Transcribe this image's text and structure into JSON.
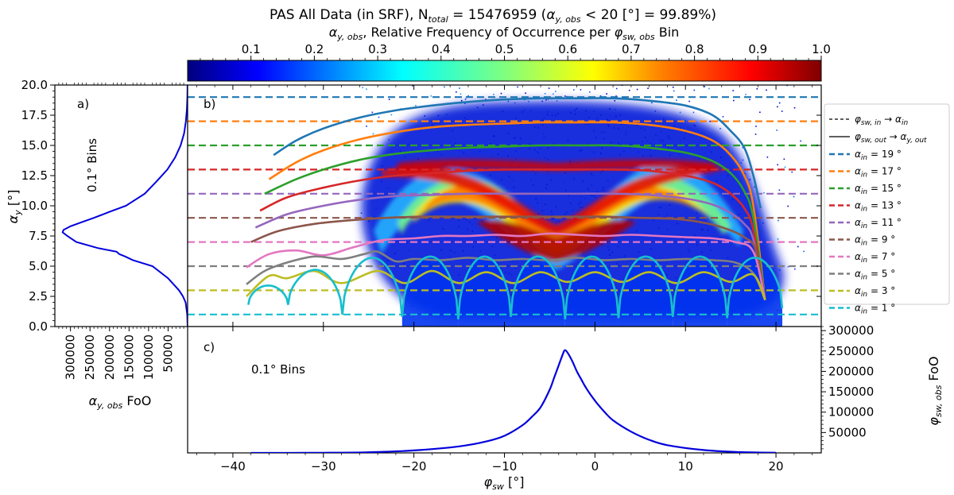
{
  "figure": {
    "title": "PAS All Data (in SRF), N",
    "title_sub": "total",
    "title_rest": " = 15476959  (",
    "title_cond_sym": "α",
    "title_cond_sub": "y, obs",
    "title_cond_rest": " < 20 [°] = 99.89%)"
  },
  "chart_data": [
    {
      "id": "colorbar",
      "type": "heatmap",
      "title_sym": "α",
      "title_sub": "y, obs",
      "title_rest": ", Relative Frequency of Occurrence per ",
      "title_sym2": "φ",
      "title_sub2": "sw, obs",
      "title_end": " Bin",
      "range": [
        0.0,
        1.0
      ],
      "tick_values": [
        0.1,
        0.2,
        0.3,
        0.4,
        0.5,
        0.6,
        0.7,
        0.8,
        0.9,
        1.0
      ],
      "tick_labels": [
        "0.1",
        "0.2",
        "0.3",
        "0.4",
        "0.5",
        "0.6",
        "0.7",
        "0.8",
        "0.9",
        "1.0"
      ],
      "colormap": [
        "#00007f",
        "#0000ff",
        "#007fff",
        "#00ffff",
        "#7fff7f",
        "#ffff00",
        "#ff7f00",
        "#ff0000",
        "#7f0000"
      ]
    },
    {
      "id": "panel_a",
      "type": "line",
      "panel_label": "a)",
      "annotation": "0.1° Bins",
      "ylabel_sym": "α",
      "ylabel_sub": "y",
      "ylabel_rest": " [°]",
      "xlabel_sym": "α",
      "xlabel_sub": "y, obs",
      "xlabel_rest": " FoO",
      "ylim": [
        0,
        20
      ],
      "xlim_reversed": [
        340000,
        0
      ],
      "y_ticks": [
        0.0,
        2.5,
        5.0,
        7.5,
        10.0,
        12.5,
        15.0,
        17.5,
        20.0
      ],
      "y_tick_labels": [
        "0.0",
        "2.5",
        "5.0",
        "7.5",
        "10.0",
        "12.5",
        "15.0",
        "17.5",
        "20.0"
      ],
      "x_ticks": [
        300000,
        250000,
        200000,
        150000,
        100000,
        50000
      ],
      "x_tick_labels": [
        "300000",
        "250000",
        "200000",
        "150000",
        "100000",
        "50000"
      ],
      "series": [
        {
          "name": "FoO",
          "color": "#0000dd",
          "y": [
            0,
            1,
            2,
            2.5,
            3,
            4,
            5,
            5.5,
            5.8,
            6.0,
            6.2,
            6.5,
            7.0,
            7.5,
            7.8,
            8.0,
            8.3,
            8.6,
            9.0,
            9.5,
            10,
            11,
            12,
            13,
            14,
            15,
            16,
            17,
            18,
            19,
            20
          ],
          "x": [
            0,
            1000,
            5000,
            12000,
            22000,
            50000,
            90000,
            140000,
            160000,
            175000,
            182000,
            230000,
            285000,
            308000,
            320000,
            318000,
            300000,
            275000,
            240000,
            200000,
            158000,
            110000,
            80000,
            52000,
            32000,
            18000,
            9000,
            4500,
            1800,
            700,
            200
          ]
        }
      ]
    },
    {
      "id": "panel_b",
      "type": "line",
      "panel_label": "b)",
      "xlim": [
        -45,
        25
      ],
      "ylim": [
        0,
        20
      ],
      "heatmap": "2D histogram of alpha_y,obs vs phi_sw,obs (relative frequency per phi bin)",
      "legend_placement": "outside-right",
      "legend_dashed_label_sym": "φ",
      "legend_dashed_label_sub": "sw, in",
      "legend_dashed_label_arrow": " → ",
      "legend_dashed_label_sym2": "α",
      "legend_dashed_label_sub2": "in",
      "legend_solid_label_sym": "φ",
      "legend_solid_label_sub": "sw, out",
      "legend_solid_label_arrow": " → ",
      "legend_solid_label_sym2": "α",
      "legend_solid_label_sub2": "y, out",
      "series": [
        {
          "name": "αin = 19 °",
          "label_sym": "α",
          "label_sub": "in",
          "label_rest": " = 19 °",
          "alpha_in": 19,
          "color": "#1f77b4",
          "x": [
            -35.5,
            -33,
            -30,
            -26,
            -22,
            -18,
            -14,
            -10,
            -6,
            -2,
            2,
            6,
            10,
            13,
            15,
            16.5,
            17.5,
            18.3
          ],
          "y": [
            14.2,
            15.4,
            16.4,
            17.3,
            17.9,
            18.3,
            18.6,
            18.8,
            18.9,
            18.9,
            18.9,
            18.7,
            18.3,
            17.5,
            16.2,
            14.8,
            12.5,
            9.8
          ]
        },
        {
          "name": "αin = 17 °",
          "label_sym": "α",
          "label_sub": "in",
          "label_rest": " = 17 °",
          "alpha_in": 17,
          "color": "#ff7f0e",
          "x": [
            -36,
            -33,
            -30,
            -26,
            -22,
            -18,
            -14,
            -10,
            -6,
            -2,
            2,
            6,
            10,
            13,
            15,
            16.5,
            17.5,
            18.8
          ],
          "y": [
            12.2,
            13.6,
            14.6,
            15.5,
            16.1,
            16.5,
            16.7,
            16.8,
            16.9,
            16.9,
            16.9,
            16.7,
            16.2,
            15.4,
            14.2,
            12.5,
            10.0,
            2.2
          ]
        },
        {
          "name": "αin = 15 °",
          "label_sym": "α",
          "label_sub": "in",
          "label_rest": " = 15 °",
          "alpha_in": 15,
          "color": "#2ca02c",
          "x": [
            -36.5,
            -33,
            -30,
            -26,
            -22,
            -18,
            -14,
            -10,
            -6,
            -2,
            2,
            6,
            10,
            13,
            15,
            16.5,
            17.5,
            18.8
          ],
          "y": [
            11.0,
            12.2,
            13.0,
            13.8,
            14.3,
            14.6,
            14.8,
            14.9,
            15.0,
            15.0,
            15.0,
            14.8,
            14.4,
            13.7,
            12.7,
            11.2,
            9.0,
            2.2
          ]
        },
        {
          "name": "αin = 13 °",
          "label_sym": "α",
          "label_sub": "in",
          "label_rest": " = 13 °",
          "alpha_in": 13,
          "color": "#d62728",
          "x": [
            -37,
            -34,
            -30,
            -26,
            -22,
            -18,
            -14,
            -10,
            -6,
            -2,
            2,
            6,
            10,
            13,
            15,
            16.5,
            17.5,
            18.8
          ],
          "y": [
            9.6,
            10.7,
            11.5,
            12.1,
            12.5,
            12.7,
            12.9,
            13.0,
            13.0,
            13.0,
            13.0,
            12.9,
            12.5,
            11.9,
            11.0,
            9.8,
            8.0,
            2.2
          ]
        },
        {
          "name": "αin = 11 °",
          "label_sym": "α",
          "label_sub": "in",
          "label_rest": " = 11 °",
          "alpha_in": 11,
          "color": "#9467bd",
          "x": [
            -37.5,
            -34,
            -30,
            -26,
            -22,
            -18,
            -14,
            -10,
            -6,
            -2,
            2,
            6,
            10,
            13,
            15,
            16.5,
            17.5,
            18.8
          ],
          "y": [
            8.2,
            9.3,
            10.0,
            10.5,
            10.8,
            10.9,
            11.0,
            11.0,
            11.0,
            11.0,
            11.0,
            10.9,
            10.6,
            10.1,
            9.4,
            8.5,
            7.2,
            2.2
          ]
        },
        {
          "name": "αin = 9 °",
          "label_sym": "α",
          "label_sub": "in",
          "label_rest": " = 9 °",
          "alpha_in": 9,
          "color": "#8c564b",
          "x": [
            -38,
            -35,
            -31,
            -27,
            -23,
            -19,
            -15,
            -11,
            -7,
            -3,
            1,
            5,
            9,
            12,
            14.5,
            16.5,
            17.8,
            18.8
          ],
          "y": [
            7.0,
            7.9,
            8.5,
            8.8,
            9.0,
            9.1,
            9.1,
            9.1,
            9.1,
            9.1,
            9.1,
            9.0,
            8.9,
            8.6,
            8.1,
            7.4,
            6.3,
            2.2
          ]
        },
        {
          "name": "αin = 7 °",
          "label_sym": "α",
          "label_sub": "in",
          "label_rest": " = 7 °",
          "alpha_in": 7,
          "color": "#e377c2",
          "x": [
            -38.5,
            -36,
            -33,
            -30,
            -27,
            -25,
            -23,
            -20,
            -17,
            -14,
            -11,
            -8,
            -5,
            -2,
            1,
            4,
            7,
            10,
            13,
            15.5,
            17.5,
            18.8
          ],
          "y": [
            4.9,
            6.0,
            6.3,
            5.9,
            6.5,
            6.9,
            7.2,
            7.3,
            7.5,
            7.5,
            7.6,
            7.5,
            7.7,
            7.6,
            7.5,
            7.6,
            7.5,
            7.4,
            7.3,
            7.0,
            6.2,
            2.2
          ]
        },
        {
          "name": "αin = 5 °",
          "label_sym": "α",
          "label_sub": "in",
          "label_rest": " = 5 °",
          "alpha_in": 5,
          "color": "#7f7f7f",
          "x": [
            -38.5,
            -36.5,
            -34,
            -31,
            -28,
            -25.5,
            -24,
            -22,
            -20,
            -17,
            -14,
            -11,
            -8,
            -5,
            -2,
            1,
            4,
            7,
            10,
            13,
            15.5,
            17.5,
            18.8
          ],
          "y": [
            3.5,
            4.6,
            5.3,
            5.8,
            5.6,
            6.0,
            6.2,
            5.4,
            5.6,
            5.5,
            5.7,
            5.5,
            5.6,
            5.5,
            5.7,
            5.5,
            5.6,
            5.5,
            5.6,
            5.5,
            5.3,
            4.4,
            2.2
          ]
        },
        {
          "name": "αin = 3 °",
          "label_sym": "α",
          "label_sub": "in",
          "label_rest": " = 3 °",
          "alpha_in": 3,
          "color": "#bcbd22",
          "x": [
            -38.5,
            -36,
            -34,
            -31,
            -28,
            -24,
            -21,
            -18,
            -15,
            -12,
            -9,
            -6,
            -3,
            0,
            3,
            6,
            9,
            12,
            15,
            17.5,
            18.8
          ],
          "y": [
            2.5,
            4.2,
            4.0,
            4.6,
            3.6,
            4.6,
            3.6,
            4.6,
            3.6,
            4.5,
            3.6,
            4.5,
            3.7,
            4.5,
            3.7,
            4.5,
            3.6,
            4.5,
            3.7,
            4.3,
            2.2
          ]
        }
      ],
      "arches_alpha_1": {
        "name": "αin = 1 °",
        "label_sym": "α",
        "label_sub": "in",
        "label_rest": " = 1 °",
        "alpha_in": 1,
        "color": "#17becf",
        "x_minima": [
          -38.3,
          -33.9,
          -27.9,
          -21.3,
          -15.1,
          -9.3,
          -3.3,
          2.6,
          8.6,
          14.6,
          20.7
        ],
        "minima_y": [
          1.8,
          1.8,
          1.0,
          0.8,
          0.6,
          0.8,
          0.6,
          0.7,
          0.8,
          0.7,
          1.5
        ],
        "peak_y": [
          3.4,
          4.7,
          5.7,
          5.8,
          5.8,
          5.8,
          5.8,
          5.8,
          5.8,
          5.7
        ]
      },
      "x_ticks": [
        -40,
        -30,
        -20,
        -10,
        0,
        10,
        20
      ],
      "x_tick_labels": [
        "−40",
        "−30",
        "−20",
        "−10",
        "0",
        "10",
        "20"
      ]
    },
    {
      "id": "panel_c",
      "type": "line",
      "panel_label": "c)",
      "annotation": "0.1° Bins",
      "xlabel_sym": "φ",
      "xlabel_sub": "sw",
      "xlabel_rest": " [°]",
      "ylabel_sym": "φ",
      "ylabel_sub": "sw, obs",
      "ylabel_rest": " FoO",
      "xlim": [
        -45,
        25
      ],
      "ylim": [
        0,
        310000
      ],
      "y_ticks": [
        50000,
        100000,
        150000,
        200000,
        250000,
        300000
      ],
      "y_tick_labels": [
        "50000",
        "100000",
        "150000",
        "200000",
        "250000",
        "300000"
      ],
      "x_ticks": [
        -40,
        -30,
        -20,
        -10,
        0,
        10,
        20
      ],
      "x_tick_labels": [
        "−40",
        "−30",
        "−20",
        "−10",
        "0",
        "10",
        "20"
      ],
      "series": [
        {
          "name": "FoO",
          "color": "#0000dd",
          "x": [
            -38,
            -30,
            -25,
            -20,
            -15,
            -12,
            -10,
            -8,
            -7,
            -6,
            -5,
            -4.5,
            -4,
            -3.5,
            -3.3,
            -3,
            -2.5,
            -2,
            -1.5,
            -1,
            0,
            1,
            2,
            4,
            6,
            8,
            12,
            16,
            20
          ],
          "y": [
            0,
            300,
            1500,
            6000,
            16000,
            28000,
            42000,
            68000,
            88000,
            112000,
            155000,
            185000,
            215000,
            245000,
            252000,
            245000,
            225000,
            200000,
            180000,
            160000,
            128000,
            102000,
            80000,
            52000,
            32000,
            19000,
            7000,
            2000,
            300
          ]
        }
      ]
    }
  ]
}
